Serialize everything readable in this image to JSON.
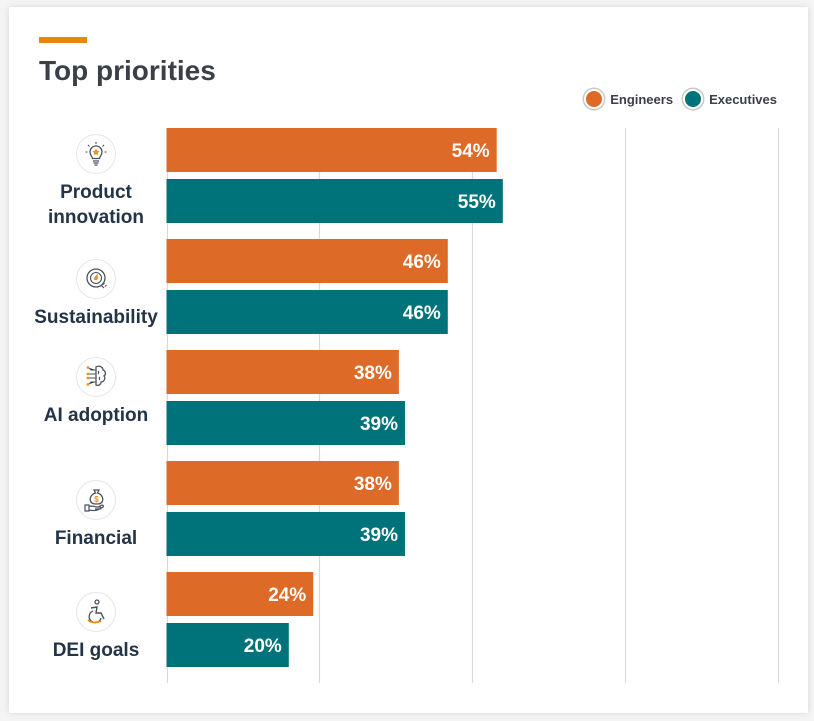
{
  "chart_data": {
    "type": "bar",
    "orientation": "horizontal",
    "title": "Top priorities",
    "categories": [
      "Product innovation",
      "Sustainability",
      "AI adoption",
      "Financial",
      "DEI goals"
    ],
    "category_icons": [
      "lightbulb-star-icon",
      "leaf-plug-icon",
      "brain-circuit-icon",
      "money-bag-hand-icon",
      "wheelchair-icon"
    ],
    "series": [
      {
        "name": "Engineers",
        "color": "#dd6a26",
        "values": [
          54,
          46,
          38,
          38,
          24
        ],
        "labels": [
          "54%",
          "46%",
          "38%",
          "38%",
          "24%"
        ]
      },
      {
        "name": "Executives",
        "color": "#00737a",
        "values": [
          55,
          46,
          39,
          39,
          20
        ],
        "labels": [
          "55%",
          "46%",
          "39%",
          "39%",
          "20%"
        ]
      }
    ],
    "xlim": [
      0,
      100
    ],
    "grid_ticks": [
      0,
      25,
      50,
      75,
      100
    ],
    "grid": true,
    "legend_position": "top-right",
    "xlabel": "",
    "ylabel": ""
  },
  "colors": {
    "accent": "#e8860a",
    "title": "#3b3f48",
    "label": "#243447",
    "grid": "#d9d9d9"
  }
}
